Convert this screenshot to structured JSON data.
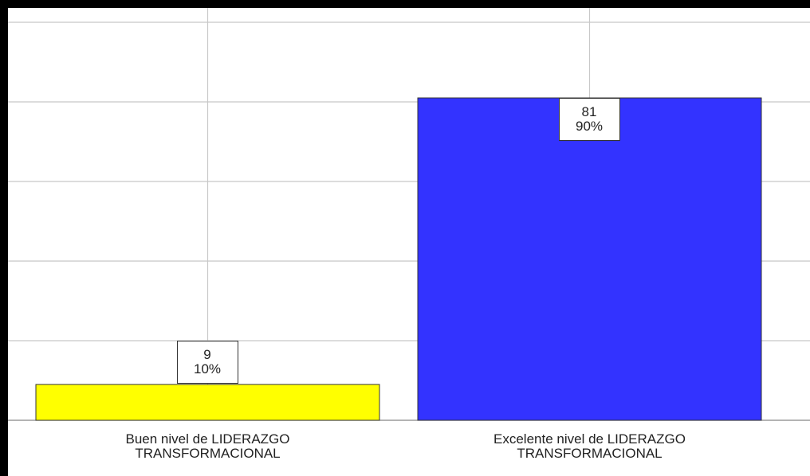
{
  "chart_data": {
    "type": "bar",
    "categories": [
      "Buen  nivel de LIDERAZGO\nTRANSFORMACIONAL",
      "Excelente nivel de LIDERAZGO\nTRANSFORMACIONAL"
    ],
    "values": [
      9,
      81
    ],
    "percent_labels": [
      "10%",
      "90%"
    ],
    "colors": [
      "#ffff00",
      "#3333ff"
    ],
    "ylim": [
      0,
      103.6
    ],
    "yticks": [
      0,
      20,
      40,
      60,
      80,
      100
    ],
    "grid": true
  }
}
